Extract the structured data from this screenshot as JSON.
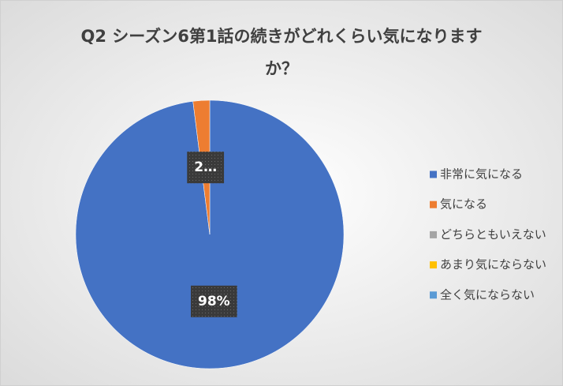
{
  "chart_data": {
    "type": "pie",
    "title": [
      "Q2 シーズン6第1話の続きがどれくらい気になります",
      "か？"
    ],
    "categories": [
      "非常に気になる",
      "気になる",
      "どちらともいえない",
      "あまり気にならない",
      "全く気にならない"
    ],
    "values": [
      98,
      2,
      0,
      0,
      0
    ],
    "value_labels": [
      "98%",
      "2…",
      null,
      null,
      null
    ],
    "colors": [
      "#4472c4",
      "#ed7d31",
      "#a5a5a5",
      "#ffc000",
      "#5b9bd5"
    ],
    "legend": "right"
  }
}
